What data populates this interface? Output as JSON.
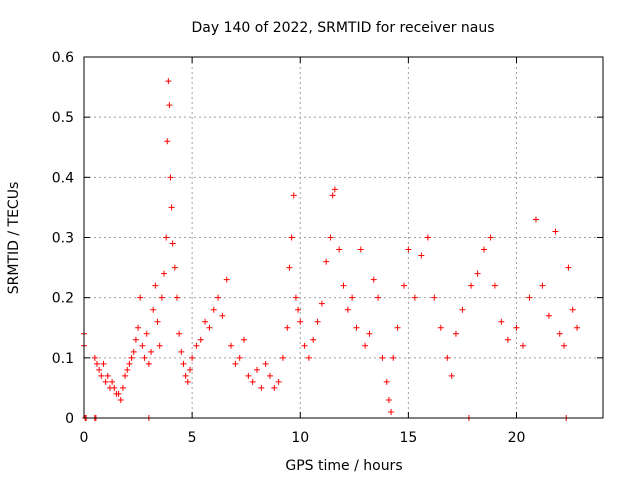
{
  "chart_data": {
    "type": "scatter",
    "title": "Day 140 of 2022, SRMTID for receiver naus",
    "xlabel": "GPS time / hours",
    "ylabel": "SRMTID / TECUs",
    "xlim": [
      0,
      24
    ],
    "ylim": [
      0,
      0.6
    ],
    "xticks": [
      0,
      5,
      10,
      15,
      20
    ],
    "xtick_labels": [
      "0",
      "5",
      "10",
      "15",
      "20"
    ],
    "yticks": [
      0,
      0.1,
      0.2,
      0.3,
      0.4,
      0.5,
      0.6
    ],
    "ytick_labels": [
      "0",
      "0.1",
      "0.2",
      "0.3",
      "0.4",
      "0.5",
      "0.6"
    ],
    "grid": true,
    "marker": "+",
    "color": "#ff0000",
    "series": [
      {
        "name": "SRMTID",
        "points": [
          [
            0.0,
            0.14
          ],
          [
            0.0,
            0.12
          ],
          [
            0.05,
            0.0
          ],
          [
            0.1,
            0.0
          ],
          [
            0.5,
            0.0
          ],
          [
            0.55,
            0.0
          ],
          [
            0.5,
            0.1
          ],
          [
            0.6,
            0.09
          ],
          [
            0.7,
            0.08
          ],
          [
            0.8,
            0.07
          ],
          [
            0.9,
            0.09
          ],
          [
            1.0,
            0.06
          ],
          [
            1.1,
            0.07
          ],
          [
            1.2,
            0.05
          ],
          [
            1.3,
            0.06
          ],
          [
            1.4,
            0.05
          ],
          [
            1.5,
            0.04
          ],
          [
            1.6,
            0.04
          ],
          [
            1.7,
            0.03
          ],
          [
            1.8,
            0.05
          ],
          [
            1.9,
            0.07
          ],
          [
            2.0,
            0.08
          ],
          [
            2.1,
            0.09
          ],
          [
            2.2,
            0.1
          ],
          [
            2.3,
            0.11
          ],
          [
            2.4,
            0.13
          ],
          [
            2.5,
            0.15
          ],
          [
            2.6,
            0.2
          ],
          [
            2.7,
            0.12
          ],
          [
            2.8,
            0.1
          ],
          [
            2.9,
            0.14
          ],
          [
            3.0,
            0.09
          ],
          [
            3.0,
            0.0
          ],
          [
            3.1,
            0.11
          ],
          [
            3.2,
            0.18
          ],
          [
            3.3,
            0.22
          ],
          [
            3.4,
            0.16
          ],
          [
            3.5,
            0.12
          ],
          [
            3.6,
            0.2
          ],
          [
            3.7,
            0.24
          ],
          [
            3.8,
            0.3
          ],
          [
            3.85,
            0.46
          ],
          [
            3.9,
            0.56
          ],
          [
            3.95,
            0.52
          ],
          [
            4.0,
            0.4
          ],
          [
            4.05,
            0.35
          ],
          [
            4.1,
            0.29
          ],
          [
            4.2,
            0.25
          ],
          [
            4.3,
            0.2
          ],
          [
            4.4,
            0.14
          ],
          [
            4.5,
            0.11
          ],
          [
            4.6,
            0.09
          ],
          [
            4.7,
            0.07
          ],
          [
            4.8,
            0.06
          ],
          [
            4.9,
            0.08
          ],
          [
            5.0,
            0.1
          ],
          [
            5.2,
            0.12
          ],
          [
            5.4,
            0.13
          ],
          [
            5.6,
            0.16
          ],
          [
            5.8,
            0.15
          ],
          [
            6.0,
            0.18
          ],
          [
            6.2,
            0.2
          ],
          [
            6.4,
            0.17
          ],
          [
            6.6,
            0.23
          ],
          [
            6.8,
            0.12
          ],
          [
            7.0,
            0.09
          ],
          [
            7.2,
            0.1
          ],
          [
            7.4,
            0.13
          ],
          [
            7.6,
            0.07
          ],
          [
            7.8,
            0.06
          ],
          [
            8.0,
            0.08
          ],
          [
            8.2,
            0.05
          ],
          [
            8.4,
            0.09
          ],
          [
            8.6,
            0.07
          ],
          [
            8.8,
            0.05
          ],
          [
            9.0,
            0.06
          ],
          [
            9.2,
            0.1
          ],
          [
            9.4,
            0.15
          ],
          [
            9.5,
            0.25
          ],
          [
            9.6,
            0.3
          ],
          [
            9.7,
            0.37
          ],
          [
            9.8,
            0.2
          ],
          [
            9.9,
            0.18
          ],
          [
            10.0,
            0.16
          ],
          [
            10.2,
            0.12
          ],
          [
            10.4,
            0.1
          ],
          [
            10.6,
            0.13
          ],
          [
            10.8,
            0.16
          ],
          [
            11.0,
            0.19
          ],
          [
            11.2,
            0.26
          ],
          [
            11.4,
            0.3
          ],
          [
            11.5,
            0.37
          ],
          [
            11.6,
            0.38
          ],
          [
            11.8,
            0.28
          ],
          [
            12.0,
            0.22
          ],
          [
            12.2,
            0.18
          ],
          [
            12.4,
            0.2
          ],
          [
            12.6,
            0.15
          ],
          [
            12.8,
            0.28
          ],
          [
            13.0,
            0.12
          ],
          [
            13.2,
            0.14
          ],
          [
            13.4,
            0.23
          ],
          [
            13.6,
            0.2
          ],
          [
            13.8,
            0.1
          ],
          [
            14.0,
            0.06
          ],
          [
            14.1,
            0.03
          ],
          [
            14.2,
            0.01
          ],
          [
            14.3,
            0.1
          ],
          [
            14.5,
            0.15
          ],
          [
            14.8,
            0.22
          ],
          [
            15.0,
            0.28
          ],
          [
            15.3,
            0.2
          ],
          [
            15.6,
            0.27
          ],
          [
            15.9,
            0.3
          ],
          [
            16.2,
            0.2
          ],
          [
            16.5,
            0.15
          ],
          [
            16.8,
            0.1
          ],
          [
            17.0,
            0.07
          ],
          [
            17.2,
            0.14
          ],
          [
            17.5,
            0.18
          ],
          [
            17.8,
            0.0
          ],
          [
            17.9,
            0.22
          ],
          [
            18.2,
            0.24
          ],
          [
            18.5,
            0.28
          ],
          [
            18.8,
            0.3
          ],
          [
            19.0,
            0.22
          ],
          [
            19.3,
            0.16
          ],
          [
            19.6,
            0.13
          ],
          [
            20.0,
            0.15
          ],
          [
            20.3,
            0.12
          ],
          [
            20.6,
            0.2
          ],
          [
            20.9,
            0.33
          ],
          [
            21.2,
            0.22
          ],
          [
            21.5,
            0.17
          ],
          [
            21.8,
            0.31
          ],
          [
            22.0,
            0.14
          ],
          [
            22.2,
            0.12
          ],
          [
            22.3,
            0.0
          ],
          [
            22.4,
            0.25
          ],
          [
            22.6,
            0.18
          ],
          [
            22.8,
            0.15
          ]
        ]
      }
    ]
  }
}
